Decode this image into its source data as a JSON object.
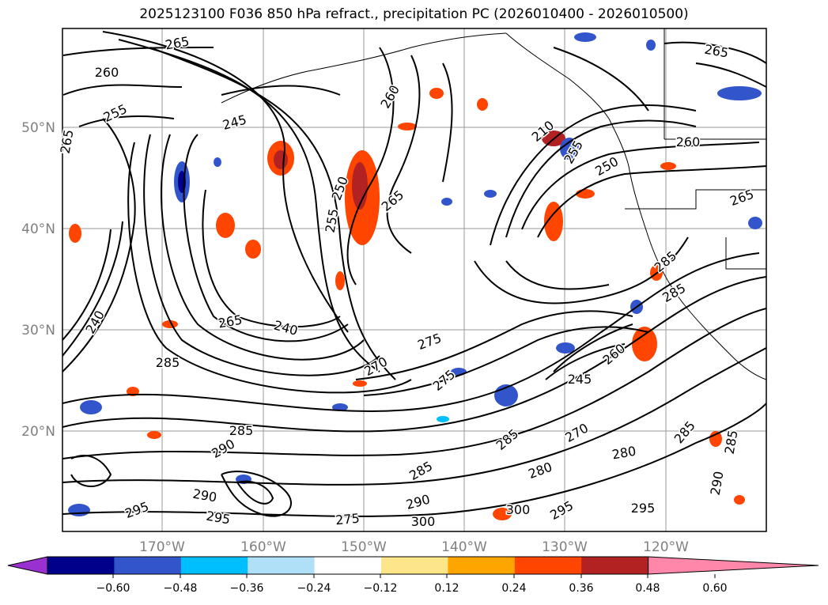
{
  "title": "2025123100 F036 850 hPa refract., precipitation PC (2026010400 - 2026010500)",
  "map": {
    "lon_ticks": [
      "170°W",
      "160°W",
      "150°W",
      "140°W",
      "130°W",
      "120°W"
    ],
    "lat_ticks": [
      "50°N",
      "40°N",
      "30°N",
      "20°N"
    ],
    "tick_label_color": "#808080",
    "contour_labels": [
      {
        "text": "265"
      },
      {
        "text": "260"
      },
      {
        "text": "255"
      },
      {
        "text": "245"
      },
      {
        "text": "265"
      },
      {
        "text": "250"
      },
      {
        "text": "265"
      },
      {
        "text": "260"
      },
      {
        "text": "250"
      },
      {
        "text": "255"
      },
      {
        "text": "210"
      },
      {
        "text": "255"
      },
      {
        "text": "260"
      },
      {
        "text": "265"
      },
      {
        "text": "285"
      },
      {
        "text": "240"
      },
      {
        "text": "265"
      },
      {
        "text": "240"
      },
      {
        "text": "275"
      },
      {
        "text": "270"
      },
      {
        "text": "285"
      },
      {
        "text": "275"
      },
      {
        "text": "245"
      },
      {
        "text": "285"
      },
      {
        "text": "290"
      },
      {
        "text": "285"
      },
      {
        "text": "280"
      },
      {
        "text": "290"
      },
      {
        "text": "295"
      },
      {
        "text": "295"
      },
      {
        "text": "275"
      },
      {
        "text": "285"
      },
      {
        "text": "300"
      },
      {
        "text": "290"
      },
      {
        "text": "300"
      },
      {
        "text": "295"
      },
      {
        "text": "280"
      },
      {
        "text": "270"
      },
      {
        "text": "285"
      },
      {
        "text": "290"
      },
      {
        "text": "295"
      },
      {
        "text": "285"
      },
      {
        "text": "260"
      },
      {
        "text": "285"
      },
      {
        "text": "265"
      }
    ]
  },
  "colorbar": {
    "ticks": [
      "−0.60",
      "−0.48",
      "−0.36",
      "−0.24",
      "−0.12",
      "0.12",
      "0.24",
      "0.36",
      "0.48",
      "0.60"
    ],
    "colors": [
      "#9b30d0",
      "#00008b",
      "#3355cc",
      "#00bfff",
      "#b0e0f8",
      "#ffffff",
      "#fde68a",
      "#ffa500",
      "#ff4500",
      "#b22222",
      "#ff88aa"
    ]
  }
}
